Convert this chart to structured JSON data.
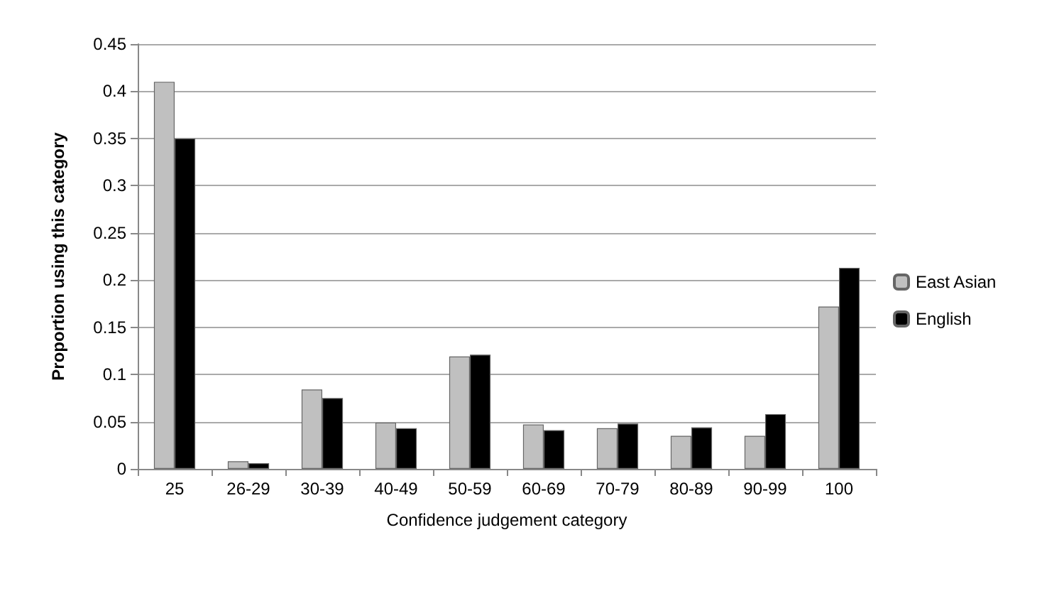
{
  "chart_data": {
    "type": "bar",
    "xlabel": "Confidence judgement category",
    "ylabel": "Proportion using this category",
    "categories": [
      "25",
      "26-29",
      "30-39",
      "40-49",
      "50-59",
      "60-69",
      "70-79",
      "80-89",
      "90-99",
      "100"
    ],
    "series": [
      {
        "name": "East Asian",
        "color": "#c0c0c0",
        "values": [
          0.41,
          0.008,
          0.084,
          0.049,
          0.119,
          0.047,
          0.043,
          0.035,
          0.035,
          0.172
        ]
      },
      {
        "name": "English",
        "color": "#000000",
        "values": [
          0.35,
          0.006,
          0.075,
          0.043,
          0.121,
          0.041,
          0.048,
          0.044,
          0.058,
          0.213
        ]
      }
    ],
    "ylim": [
      0,
      0.45
    ],
    "yticks": [
      0,
      0.05,
      0.1,
      0.15,
      0.2,
      0.25,
      0.3,
      0.35,
      0.4,
      0.45
    ],
    "grid": "y",
    "legend": "right"
  }
}
